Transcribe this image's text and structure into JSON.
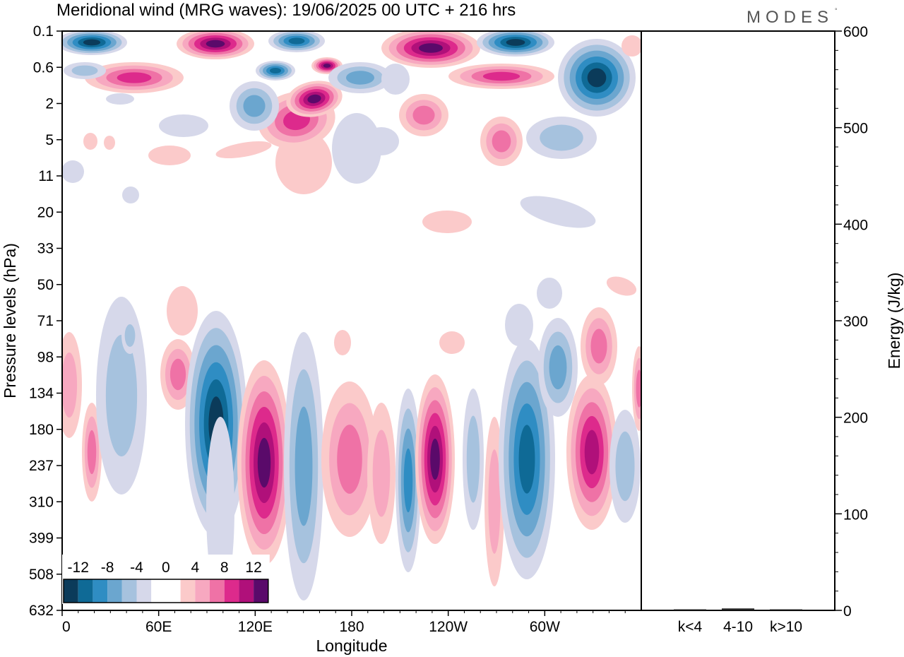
{
  "title": "Meridional wind (MRG waves):  19/06/2025  00 UTC  + 216 hrs",
  "brand": "MODES",
  "brand_mark": "°",
  "chart_data": [
    {
      "type": "heatmap",
      "variable": "Meridional wind (MRG waves)",
      "xlabel": "Longitude",
      "ylabel": "Pressure levels (hPa)",
      "x_ticks": [
        "0",
        "60E",
        "120E",
        "180",
        "120W",
        "60W"
      ],
      "y_ticks": [
        "0.1",
        "0.6",
        "2",
        "5",
        "11",
        "20",
        "33",
        "50",
        "71",
        "98",
        "134",
        "180",
        "237",
        "310",
        "399",
        "508",
        "632"
      ],
      "colorbar": {
        "labels": [
          "-12",
          "-8",
          "-4",
          "0",
          "4",
          "8",
          "12"
        ],
        "colors": [
          "#0b3b5a",
          "#0f6a96",
          "#2f8dc3",
          "#6ba6cf",
          "#a6c2de",
          "#d6d8ea",
          "#ffffff",
          "#ffffff",
          "#fbcaca",
          "#f7a8c0",
          "#ef72a6",
          "#dd2a8c",
          "#b0107a",
          "#5a0a6a"
        ]
      },
      "features": [
        {
          "lon": 97,
          "level": "180",
          "value": -10
        },
        {
          "lon": 130,
          "level": "237",
          "value": 10
        },
        {
          "lon": 243,
          "level": "237",
          "value": 12
        },
        {
          "lon": 290,
          "level": "237",
          "value": -8
        },
        {
          "lon": 335,
          "level": "237",
          "value": 10
        },
        {
          "lon": 165,
          "level": "2",
          "value": 14
        },
        {
          "lon": 340,
          "level": "1",
          "value": -14
        },
        {
          "lon": 220,
          "level": "0.2",
          "value": 14
        },
        {
          "lon": 85,
          "level": "0.1",
          "value": 14
        }
      ]
    },
    {
      "type": "bar",
      "categories": [
        "k<4",
        "4-10",
        "k>10"
      ],
      "values": [
        0.5,
        2,
        0.5
      ],
      "ylabel": "Energy (J/kg)",
      "ylim": [
        0,
        600
      ],
      "y_ticks": [
        "0",
        "100",
        "200",
        "300",
        "400",
        "500",
        "600"
      ]
    }
  ]
}
